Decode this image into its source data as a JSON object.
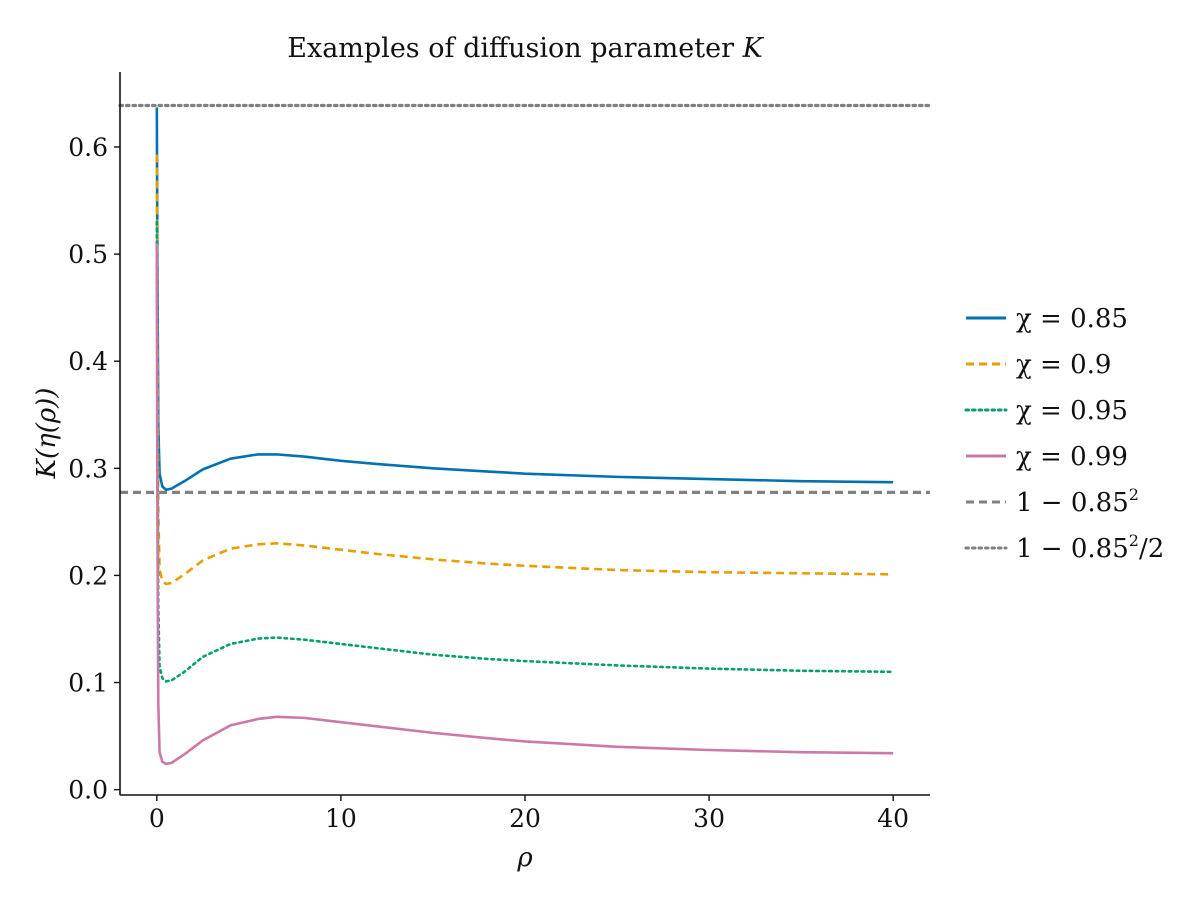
{
  "chart_data": {
    "type": "line",
    "title": "Examples of diffusion parameter K",
    "xlabel": "ρ",
    "ylabel": "K(η(ρ))",
    "xlim": [
      -2,
      42
    ],
    "ylim": [
      -0.005,
      0.67
    ],
    "xticks": [
      0,
      10,
      20,
      30,
      40
    ],
    "xtick_labels": [
      "0",
      "10",
      "20",
      "30",
      "40"
    ],
    "yticks": [
      0.0,
      0.1,
      0.2,
      0.3,
      0.4,
      0.5,
      0.6
    ],
    "ytick_labels": [
      "0.0",
      "0.1",
      "0.2",
      "0.3",
      "0.4",
      "0.5",
      "0.6"
    ],
    "grid": false,
    "legend_position": "right-outside",
    "x": [
      0.0,
      0.03,
      0.08,
      0.15,
      0.3,
      0.5,
      0.8,
      1.5,
      2.5,
      4.0,
      5.5,
      6.5,
      8.0,
      10.0,
      12.0,
      15.0,
      18.0,
      20.0,
      25.0,
      30.0,
      35.0,
      40.0
    ],
    "series": [
      {
        "name": "χ = 0.85",
        "color": "#0072b2",
        "style": "solid",
        "values": [
          0.637,
          0.5,
          0.34,
          0.295,
          0.283,
          0.28,
          0.281,
          0.288,
          0.299,
          0.309,
          0.313,
          0.313,
          0.311,
          0.307,
          0.304,
          0.3,
          0.297,
          0.295,
          0.292,
          0.29,
          0.288,
          0.287
        ]
      },
      {
        "name": "χ = 0.9",
        "color": "#e69f00",
        "style": "dashed",
        "values": [
          0.593,
          0.43,
          0.26,
          0.205,
          0.195,
          0.192,
          0.193,
          0.201,
          0.214,
          0.225,
          0.229,
          0.23,
          0.228,
          0.224,
          0.22,
          0.215,
          0.211,
          0.209,
          0.205,
          0.203,
          0.202,
          0.201
        ]
      },
      {
        "name": "χ = 0.95",
        "color": "#009e73",
        "style": "dotted",
        "values": [
          0.53,
          0.35,
          0.17,
          0.115,
          0.104,
          0.101,
          0.102,
          0.11,
          0.124,
          0.136,
          0.141,
          0.142,
          0.14,
          0.136,
          0.132,
          0.126,
          0.122,
          0.12,
          0.116,
          0.113,
          0.111,
          0.11
        ]
      },
      {
        "name": "χ = 0.99",
        "color": "#cc79a7",
        "style": "solid",
        "values": [
          0.51,
          0.26,
          0.08,
          0.035,
          0.026,
          0.024,
          0.025,
          0.033,
          0.046,
          0.06,
          0.066,
          0.068,
          0.067,
          0.063,
          0.059,
          0.053,
          0.048,
          0.045,
          0.04,
          0.037,
          0.035,
          0.034
        ]
      }
    ],
    "reference_lines": [
      {
        "name": "1 − 0.85²",
        "label_base": "1 − 0.85",
        "label_sup": "2",
        "label_tail": "",
        "y": 0.2775,
        "color": "#808080",
        "style": "dashed"
      },
      {
        "name": "1 − 0.85²/2",
        "label_base": "1 − 0.85",
        "label_sup": "2",
        "label_tail": "/2",
        "y": 0.63875,
        "color": "#808080",
        "style": "dotted"
      }
    ]
  }
}
